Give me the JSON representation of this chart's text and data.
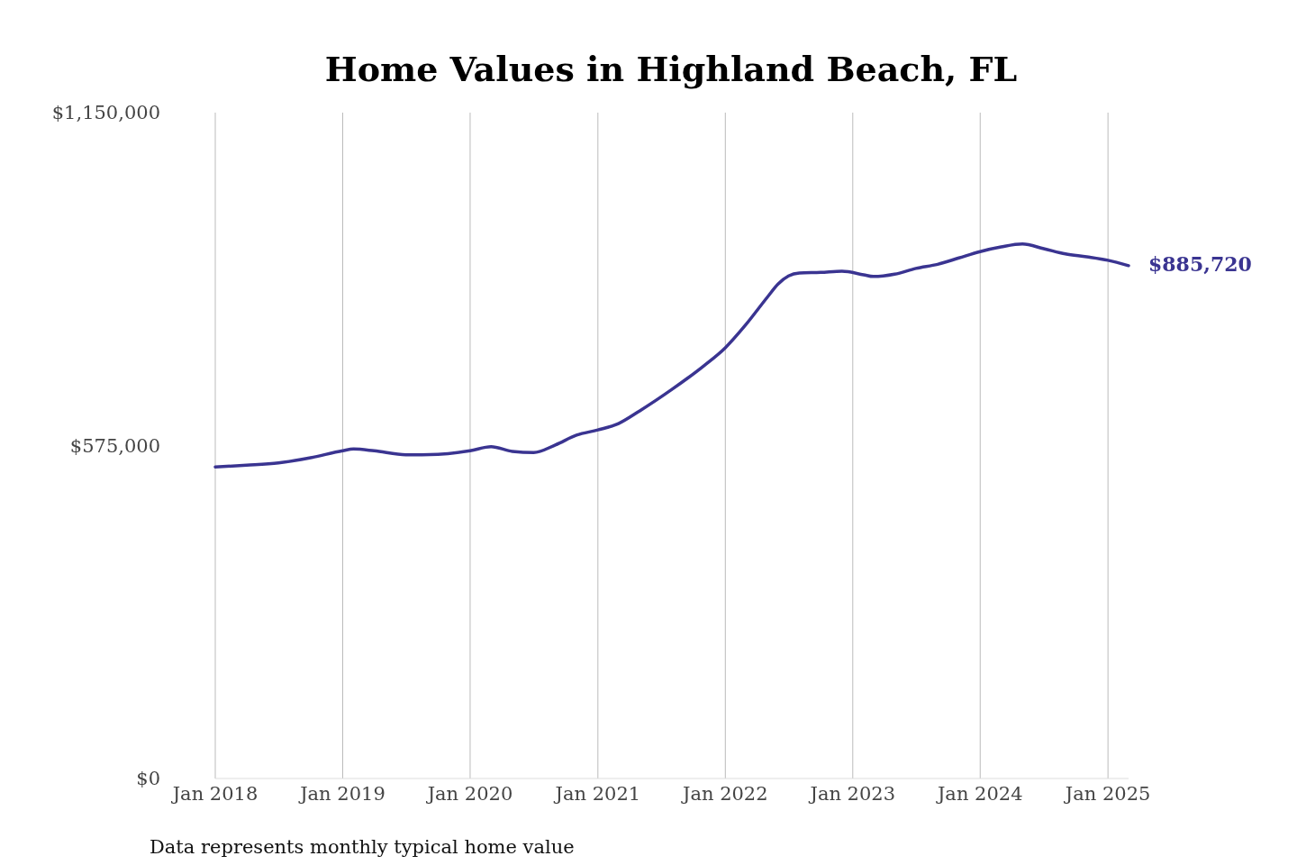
{
  "chart_data": {
    "type": "line",
    "title": "Home Values in Highland Beach, FL",
    "x": [
      "2018-01",
      "2018-04",
      "2018-07",
      "2018-10",
      "2019-01",
      "2019-02",
      "2019-04",
      "2019-07",
      "2019-10",
      "2020-01",
      "2020-03",
      "2020-05",
      "2020-07",
      "2020-09",
      "2020-11",
      "2021-01",
      "2021-03",
      "2021-05",
      "2021-08",
      "2021-11",
      "2022-01",
      "2022-03",
      "2022-05",
      "2022-06",
      "2022-07",
      "2022-08",
      "2022-10",
      "2022-12",
      "2023-02",
      "2023-03",
      "2023-05",
      "2023-07",
      "2023-09",
      "2023-11",
      "2024-01",
      "2024-03",
      "2024-05",
      "2024-07",
      "2024-09",
      "2024-11",
      "2025-01",
      "2025-03"
    ],
    "series": [
      {
        "color": "#3a3491",
        "values": [
          538000,
          541000,
          545000,
          554000,
          566000,
          569000,
          566000,
          559000,
          560000,
          566000,
          573000,
          565000,
          563000,
          576000,
          593000,
          602000,
          613000,
          635000,
          672000,
          713000,
          744000,
          784000,
          831000,
          854000,
          868000,
          873000,
          874000,
          876000,
          870000,
          867000,
          871000,
          881000,
          888000,
          899000,
          910000,
          918000,
          923000,
          915000,
          906000,
          901000,
          895000,
          885720
        ]
      }
    ],
    "xticks": [
      {
        "value": "2018-01",
        "label": "Jan 2018"
      },
      {
        "value": "2019-01",
        "label": "Jan 2019"
      },
      {
        "value": "2020-01",
        "label": "Jan 2020"
      },
      {
        "value": "2021-01",
        "label": "Jan 2021"
      },
      {
        "value": "2022-01",
        "label": "Jan 2022"
      },
      {
        "value": "2023-01",
        "label": "Jan 2023"
      },
      {
        "value": "2024-01",
        "label": "Jan 2024"
      },
      {
        "value": "2025-01",
        "label": "Jan 2025"
      }
    ],
    "ylim": [
      0,
      1150000
    ],
    "yticks": [
      {
        "value": 0,
        "label": "$0"
      },
      {
        "value": 575000,
        "label": "$575,000"
      },
      {
        "value": 1150000,
        "label": "$1,150,000"
      }
    ],
    "xlim": [
      "2018-01",
      "2025-03"
    ],
    "grid": "x",
    "marker": "none",
    "line_style": "solid",
    "annotations": [
      {
        "text": "$885,720",
        "x": "2025-03",
        "y": 885720
      },
      "Data represents monthly typical home value"
    ]
  }
}
